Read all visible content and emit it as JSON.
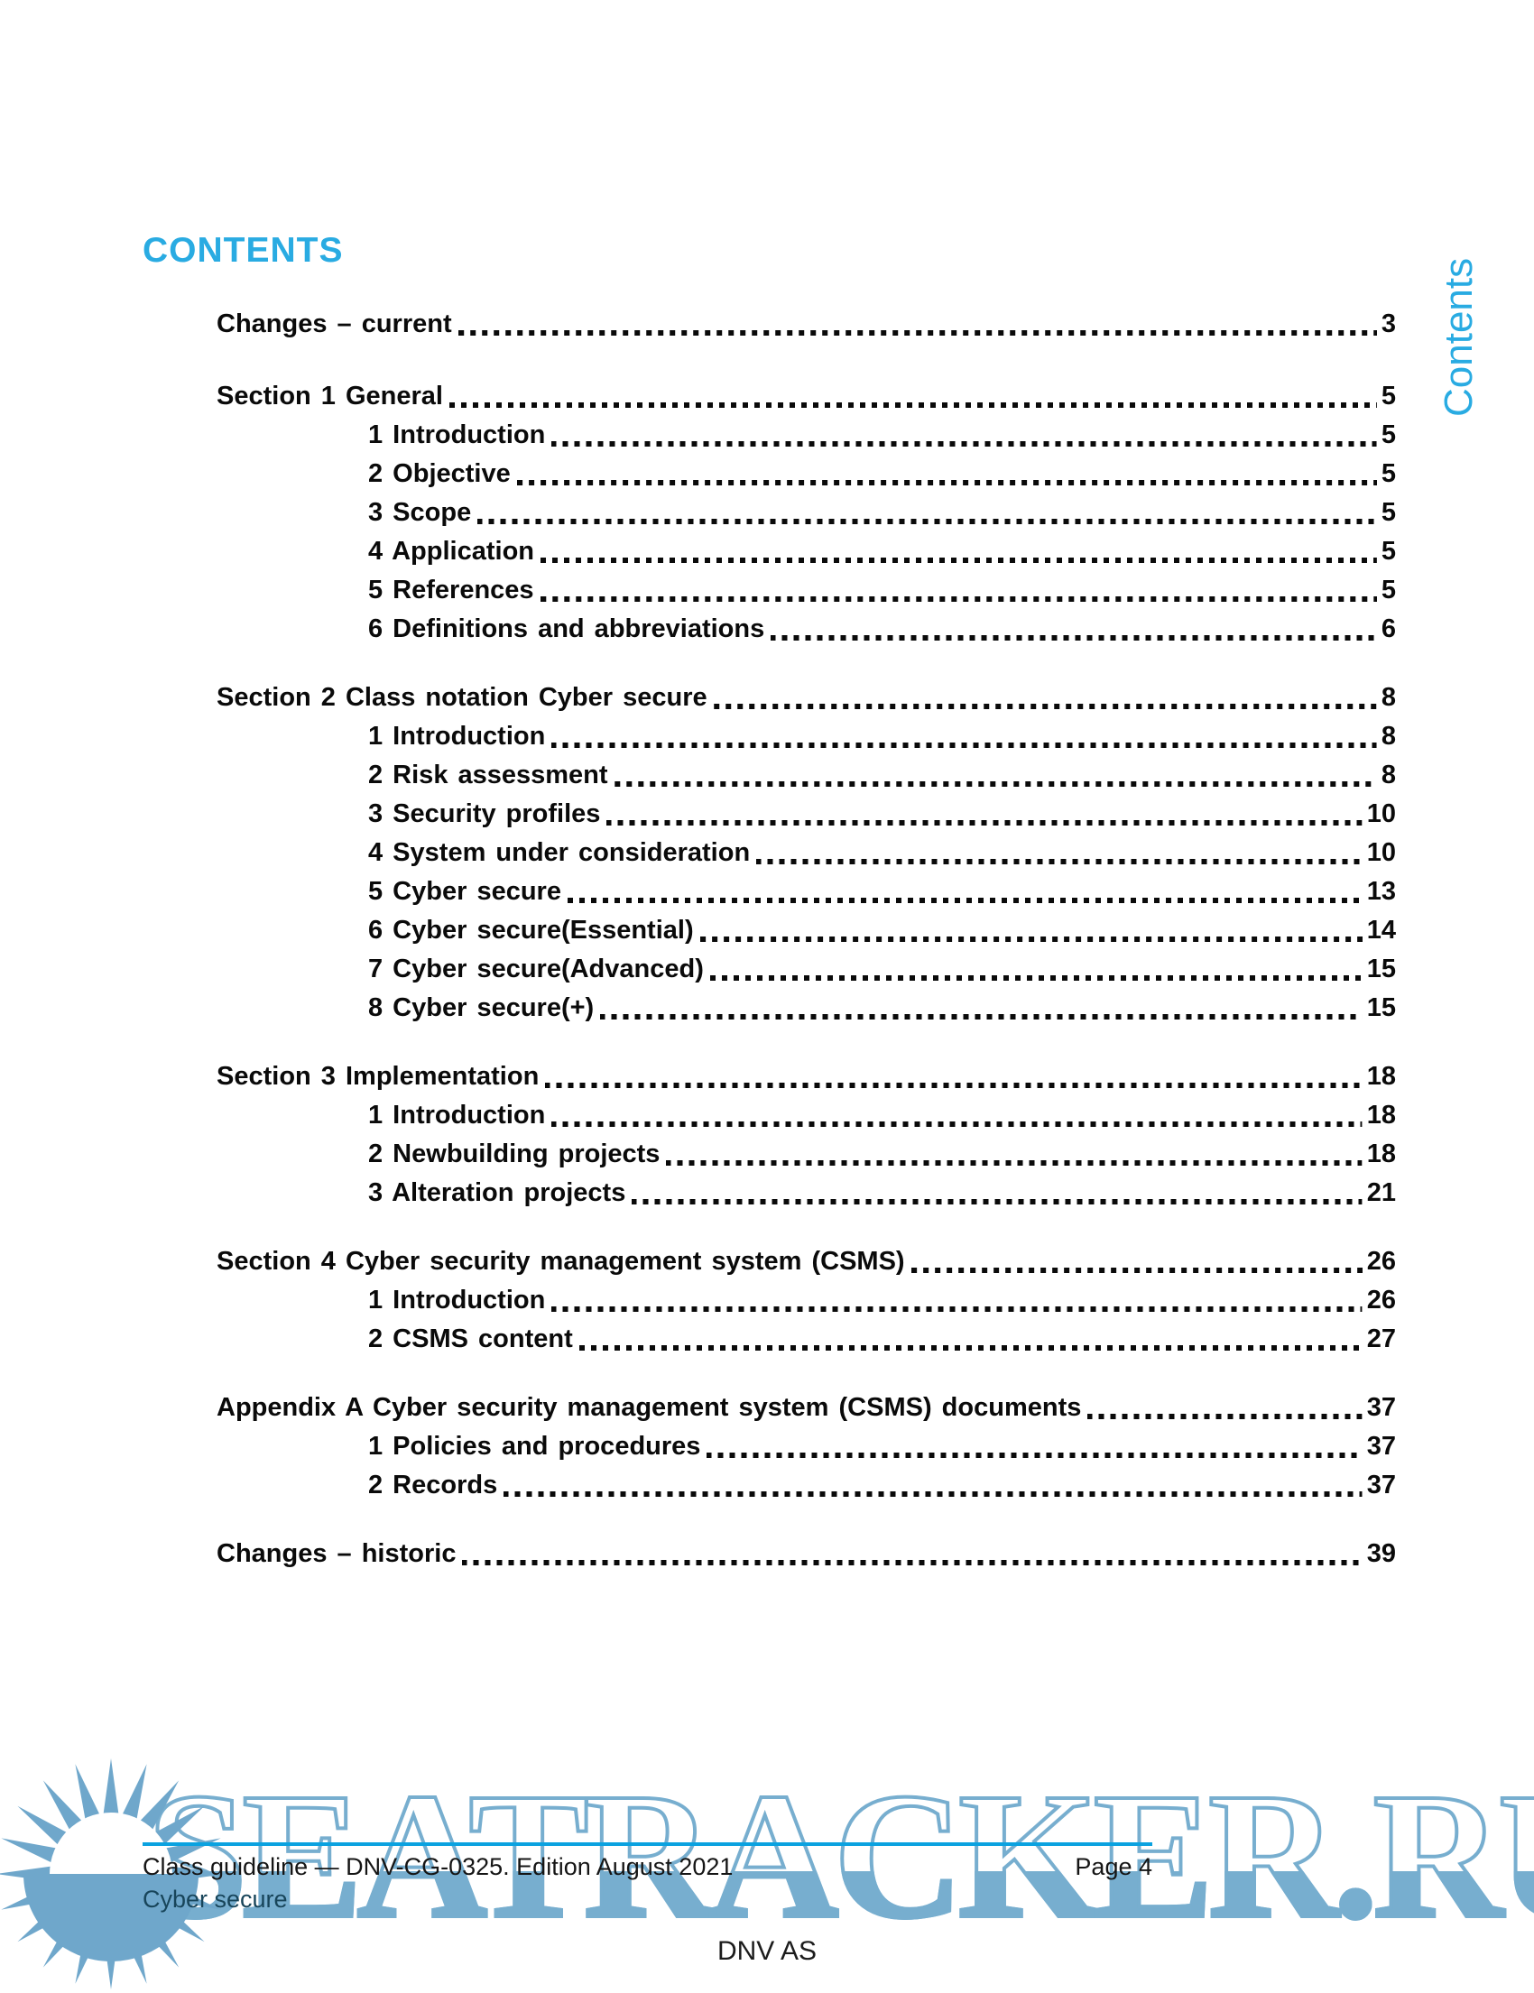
{
  "page": {
    "heading": "CONTENTS",
    "side_label": "Contents",
    "accent_color": "#29abe2",
    "watermark_text": "SEATRACKER.RU",
    "watermark_color": "#77aecf"
  },
  "toc": {
    "entries": [
      {
        "label": "Changes – current",
        "page": "3",
        "level": 0,
        "gap": false
      },
      {
        "label": "Section 1 General",
        "page": "5",
        "level": 0,
        "gap": true
      },
      {
        "label": "1 Introduction",
        "page": "5",
        "level": 1,
        "gap": false
      },
      {
        "label": "2 Objective",
        "page": "5",
        "level": 1,
        "gap": false
      },
      {
        "label": "3 Scope",
        "page": "5",
        "level": 1,
        "gap": false
      },
      {
        "label": "4 Application",
        "page": "5",
        "level": 1,
        "gap": false
      },
      {
        "label": "5 References",
        "page": "5",
        "level": 1,
        "gap": false
      },
      {
        "label": "6 Definitions and abbreviations",
        "page": "6",
        "level": 1,
        "gap": false
      },
      {
        "label": "Section 2 Class notation Cyber secure",
        "page": "8",
        "level": 0,
        "gap": true
      },
      {
        "label": "1 Introduction",
        "page": "8",
        "level": 1,
        "gap": false
      },
      {
        "label": "2 Risk assessment",
        "page": "8",
        "level": 1,
        "gap": false
      },
      {
        "label": "3 Security profiles",
        "page": "10",
        "level": 1,
        "gap": false
      },
      {
        "label": "4 System under consideration",
        "page": "10",
        "level": 1,
        "gap": false
      },
      {
        "label": "5 Cyber secure",
        "page": "13",
        "level": 1,
        "gap": false
      },
      {
        "label": "6 Cyber secure(Essential)",
        "page": "14",
        "level": 1,
        "gap": false
      },
      {
        "label": "7 Cyber secure(Advanced)",
        "page": "15",
        "level": 1,
        "gap": false
      },
      {
        "label": "8 Cyber secure(+)",
        "page": "15",
        "level": 1,
        "gap": false
      },
      {
        "label": "Section 3 Implementation",
        "page": "18",
        "level": 0,
        "gap": true
      },
      {
        "label": "1 Introduction",
        "page": "18",
        "level": 1,
        "gap": false
      },
      {
        "label": "2 Newbuilding projects",
        "page": "18",
        "level": 1,
        "gap": false
      },
      {
        "label": "3 Alteration projects",
        "page": "21",
        "level": 1,
        "gap": false
      },
      {
        "label": "Section 4 Cyber security management system (CSMS)",
        "page": "26",
        "level": 0,
        "gap": true
      },
      {
        "label": "1 Introduction",
        "page": "26",
        "level": 1,
        "gap": false
      },
      {
        "label": "2 CSMS content",
        "page": "27",
        "level": 1,
        "gap": false
      },
      {
        "label": "Appendix A Cyber security management system (CSMS) documents",
        "page": "37",
        "level": 0,
        "gap": true
      },
      {
        "label": "1 Policies and procedures",
        "page": "37",
        "level": 1,
        "gap": false
      },
      {
        "label": "2 Records",
        "page": "37",
        "level": 1,
        "gap": false
      },
      {
        "label": "Changes – historic",
        "page": "39",
        "level": 0,
        "gap": true
      }
    ]
  },
  "footer": {
    "line1": "Class guideline — DNV-CG-0325. Edition August 2021",
    "line2": "Cyber secure",
    "page_label": "Page 4",
    "company": "DNV AS"
  }
}
